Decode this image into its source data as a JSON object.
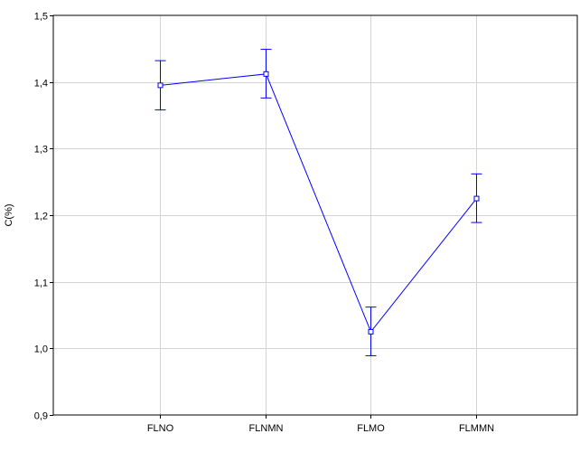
{
  "chart_data": {
    "type": "line",
    "title": "",
    "xlabel": "",
    "ylabel": "C(%)",
    "categories": [
      "FLNO",
      "FLNMN",
      "FLMO",
      "FLMMN"
    ],
    "series": [
      {
        "values": [
          1.395,
          1.412,
          1.025,
          1.225
        ],
        "error_low": [
          1.358,
          1.376,
          0.989,
          1.189
        ],
        "error_high": [
          1.432,
          1.449,
          1.062,
          1.262
        ],
        "color": "#0000ff"
      }
    ],
    "ylim": [
      0.9,
      1.5
    ],
    "yticks": [
      0.9,
      1.0,
      1.1,
      1.2,
      1.3,
      1.4,
      1.5
    ],
    "ytick_labels": [
      "0,9",
      "1,0",
      "1,1",
      "1,2",
      "1,3",
      "1,4",
      "1,5"
    ],
    "grid": true,
    "colors": {
      "grid": "#d3d3d3",
      "axis": "#000000",
      "series": "#0000ff"
    }
  }
}
